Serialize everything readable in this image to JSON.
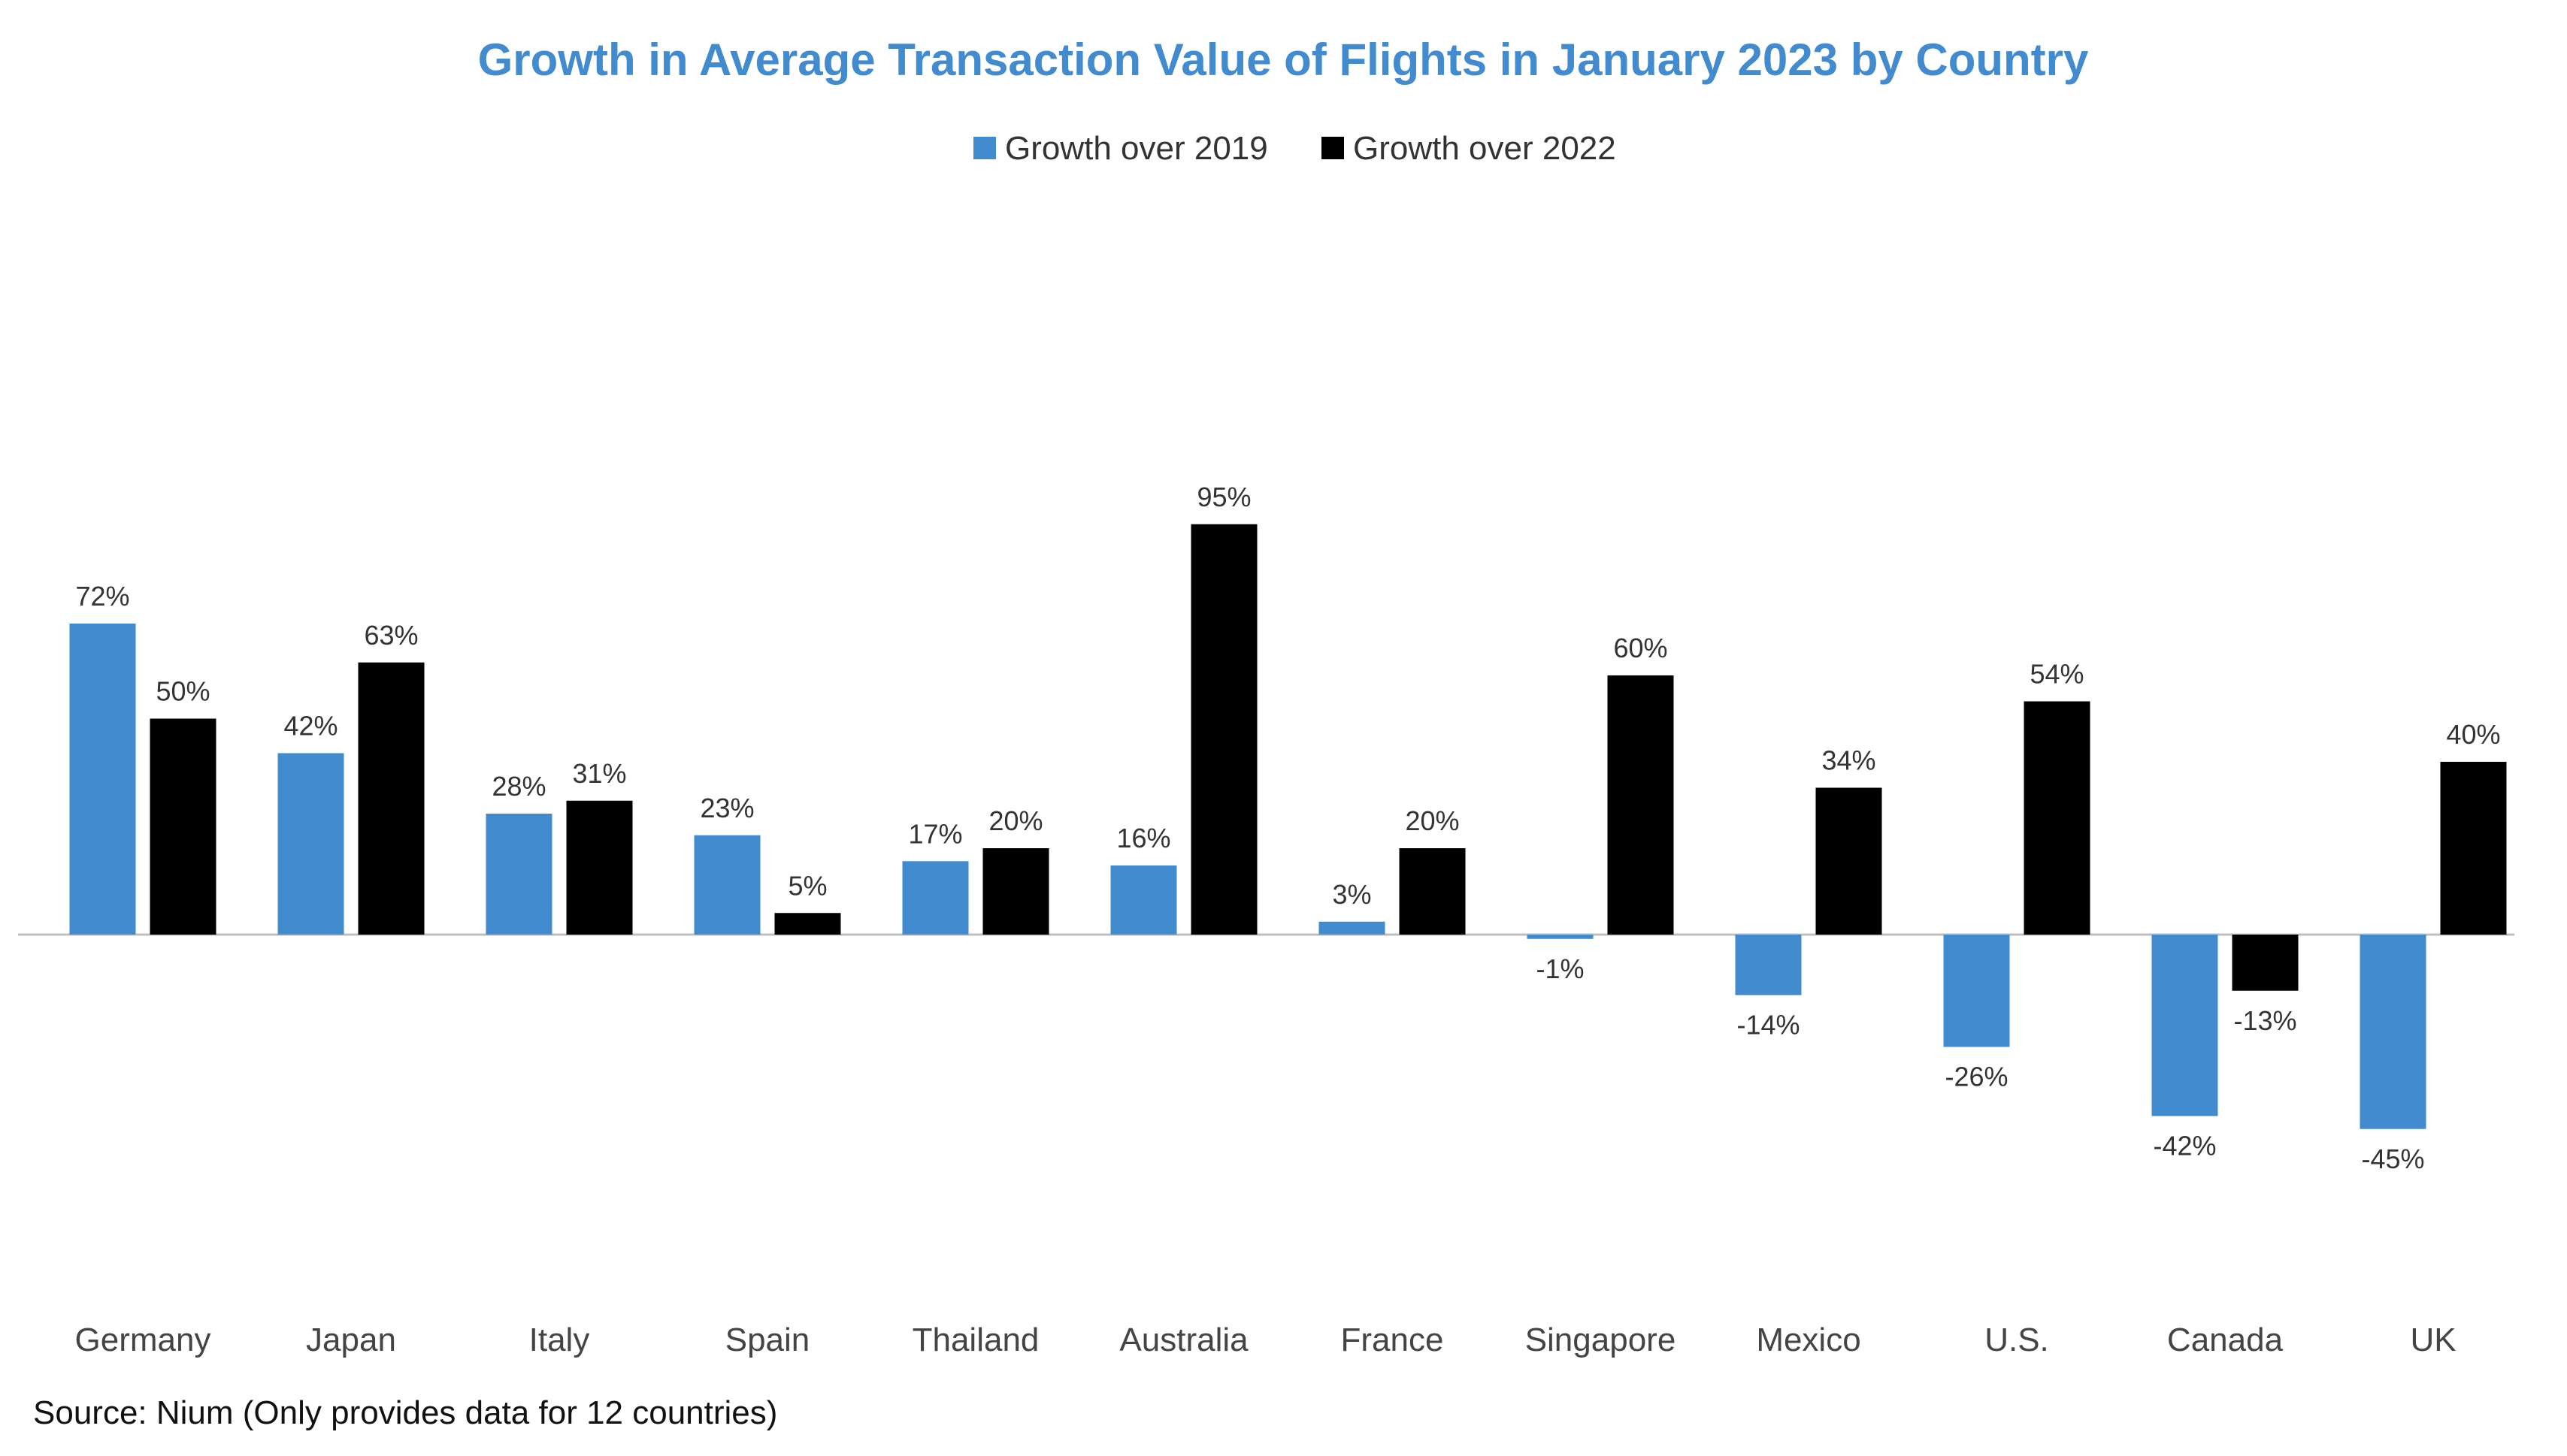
{
  "source_note": "Source: Nium (Only provides data for 12 countries)",
  "colors": {
    "title": "#428BCF",
    "series_2019": "#428BCF",
    "series_2022": "#000000",
    "zero_line": "#BFBFBF",
    "text": "#333333"
  },
  "chart_data": {
    "type": "bar",
    "title": "Growth in Average Transaction Value of Flights in January 2023 by Country",
    "xlabel": "",
    "ylabel": "",
    "legend_position": "top-center",
    "grid": false,
    "ylim": [
      -50,
      100
    ],
    "categories": [
      "Germany",
      "Japan",
      "Italy",
      "Spain",
      "Thailand",
      "Australia",
      "France",
      "Singapore",
      "Mexico",
      "U.S.",
      "Canada",
      "UK"
    ],
    "series": [
      {
        "name": "Growth over 2019",
        "color": "#428BCF",
        "values": [
          72,
          42,
          28,
          23,
          17,
          16,
          3,
          -1,
          -14,
          -26,
          -42,
          -45
        ],
        "labels": [
          "72%",
          "42%",
          "28%",
          "23%",
          "17%",
          "16%",
          "3%",
          "-1%",
          "-14%",
          "-26%",
          "-42%",
          "-45%"
        ]
      },
      {
        "name": "Growth over 2022",
        "color": "#000000",
        "values": [
          50,
          63,
          31,
          5,
          20,
          95,
          20,
          60,
          34,
          54,
          -13,
          40
        ],
        "labels": [
          "50%",
          "63%",
          "31%",
          "5%",
          "20%",
          "95%",
          "20%",
          "60%",
          "34%",
          "54%",
          "-13%",
          "40%"
        ]
      }
    ]
  }
}
